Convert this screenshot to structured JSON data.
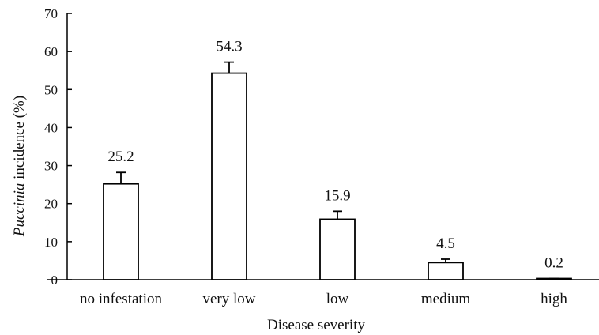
{
  "chart_data": {
    "type": "bar",
    "categories": [
      "no infestation",
      "very low",
      "low",
      "medium",
      "high"
    ],
    "values": [
      25.2,
      54.3,
      15.9,
      4.5,
      0.2
    ],
    "error_upper": [
      3.0,
      2.9,
      2.1,
      0.9,
      0.1
    ],
    "value_labels": [
      "25.2",
      "54.3",
      "15.9",
      "4.5",
      "0.2"
    ],
    "xlabel": "Disease severity",
    "ylabel_italic": "Puccinia",
    "ylabel_rest": " incidence (%)",
    "ylim": [
      0,
      70
    ],
    "yticks": [
      0,
      10,
      20,
      30,
      40,
      50,
      60,
      70
    ],
    "grid": false,
    "bar_fill": "#ffffff",
    "bar_stroke": "#000000"
  }
}
